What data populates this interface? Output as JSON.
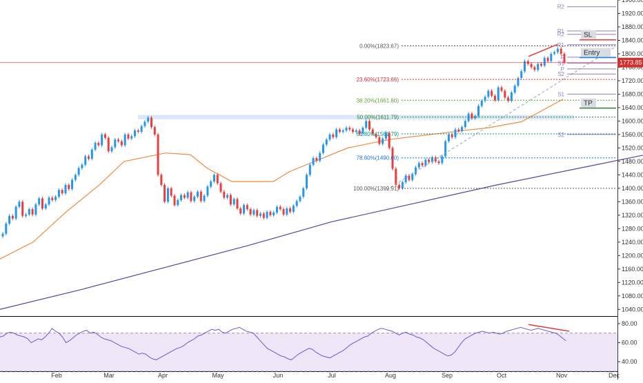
{
  "chart_data": {
    "type": "candlestick",
    "x_months": [
      "Feb",
      "Mar",
      "Apr",
      "May",
      "Jun",
      "Jul",
      "Aug",
      "Sep",
      "Oct",
      "Nov",
      "Dec"
    ],
    "y_axis": {
      "ylim": [
        1020,
        1960
      ],
      "ticks": [
        "1960.00",
        "1920.00",
        "1880.00",
        "1840.00",
        "1800.00",
        "1760.00",
        "1720.00",
        "1680.00",
        "1640.00",
        "1600.00",
        "1560.00",
        "1520.00",
        "1480.00",
        "1440.00",
        "1400.00",
        "1360.00",
        "1320.00",
        "1280.00",
        "1240.00",
        "1200.00",
        "1160.00",
        "1120.00",
        "1080.00",
        "1040.00"
      ]
    },
    "price_series": [
      [
        1257,
        1265
      ],
      [
        1265,
        1295
      ],
      [
        1295,
        1318
      ],
      [
        1318,
        1310
      ],
      [
        1310,
        1345
      ],
      [
        1345,
        1360
      ],
      [
        1360,
        1318
      ],
      [
        1318,
        1322
      ],
      [
        1322,
        1338
      ],
      [
        1338,
        1322
      ],
      [
        1322,
        1352
      ],
      [
        1352,
        1370
      ],
      [
        1370,
        1340
      ],
      [
        1340,
        1352
      ],
      [
        1352,
        1372
      ],
      [
        1372,
        1365
      ],
      [
        1365,
        1375
      ],
      [
        1375,
        1395
      ],
      [
        1395,
        1385
      ],
      [
        1385,
        1410
      ],
      [
        1410,
        1398
      ],
      [
        1398,
        1425
      ],
      [
        1425,
        1440
      ],
      [
        1440,
        1460
      ],
      [
        1460,
        1470
      ],
      [
        1470,
        1495
      ],
      [
        1495,
        1488
      ],
      [
        1488,
        1515
      ],
      [
        1515,
        1535
      ],
      [
        1535,
        1528
      ],
      [
        1528,
        1560
      ],
      [
        1560,
        1550
      ],
      [
        1550,
        1510
      ],
      [
        1510,
        1522
      ],
      [
        1522,
        1545
      ],
      [
        1545,
        1540
      ],
      [
        1540,
        1528
      ],
      [
        1528,
        1560
      ],
      [
        1560,
        1548
      ],
      [
        1548,
        1555
      ],
      [
        1555,
        1572
      ],
      [
        1572,
        1568
      ],
      [
        1568,
        1585
      ],
      [
        1585,
        1598
      ],
      [
        1598,
        1610
      ],
      [
        1610,
        1582
      ],
      [
        1582,
        1560
      ],
      [
        1560,
        1440
      ],
      [
        1440,
        1410
      ],
      [
        1410,
        1360
      ],
      [
        1360,
        1400
      ],
      [
        1400,
        1378
      ],
      [
        1378,
        1350
      ],
      [
        1350,
        1365
      ],
      [
        1365,
        1380
      ],
      [
        1380,
        1372
      ],
      [
        1372,
        1388
      ],
      [
        1388,
        1362
      ],
      [
        1362,
        1375
      ],
      [
        1375,
        1390
      ],
      [
        1390,
        1362
      ],
      [
        1362,
        1378
      ],
      [
        1378,
        1405
      ],
      [
        1405,
        1420
      ],
      [
        1420,
        1440
      ],
      [
        1440,
        1415
      ],
      [
        1415,
        1390
      ],
      [
        1390,
        1372
      ],
      [
        1372,
        1380
      ],
      [
        1380,
        1352
      ],
      [
        1352,
        1368
      ],
      [
        1368,
        1340
      ],
      [
        1340,
        1325
      ],
      [
        1325,
        1350
      ],
      [
        1350,
        1338
      ],
      [
        1338,
        1322
      ],
      [
        1322,
        1335
      ],
      [
        1335,
        1318
      ],
      [
        1318,
        1325
      ],
      [
        1325,
        1312
      ],
      [
        1312,
        1330
      ],
      [
        1330,
        1320
      ],
      [
        1320,
        1328
      ],
      [
        1328,
        1345
      ],
      [
        1345,
        1338
      ],
      [
        1338,
        1322
      ],
      [
        1322,
        1340
      ],
      [
        1340,
        1330
      ],
      [
        1330,
        1348
      ],
      [
        1348,
        1362
      ],
      [
        1362,
        1375
      ],
      [
        1375,
        1400
      ],
      [
        1400,
        1440
      ],
      [
        1440,
        1470
      ],
      [
        1470,
        1490
      ],
      [
        1490,
        1482
      ],
      [
        1482,
        1505
      ],
      [
        1505,
        1530
      ],
      [
        1530,
        1545
      ],
      [
        1545,
        1560
      ],
      [
        1560,
        1552
      ],
      [
        1552,
        1575
      ],
      [
        1575,
        1568
      ],
      [
        1568,
        1572
      ],
      [
        1572,
        1580
      ],
      [
        1580,
        1575
      ],
      [
        1575,
        1568
      ],
      [
        1568,
        1572
      ],
      [
        1572,
        1562
      ],
      [
        1562,
        1580
      ],
      [
        1580,
        1600
      ],
      [
        1600,
        1575
      ],
      [
        1575,
        1562
      ],
      [
        1562,
        1552
      ],
      [
        1552,
        1532
      ],
      [
        1532,
        1548
      ],
      [
        1548,
        1565
      ],
      [
        1565,
        1520
      ],
      [
        1520,
        1458
      ],
      [
        1458,
        1410
      ],
      [
        1410,
        1400
      ],
      [
        1400,
        1418
      ],
      [
        1418,
        1438
      ],
      [
        1438,
        1425
      ],
      [
        1425,
        1442
      ],
      [
        1442,
        1462
      ],
      [
        1462,
        1475
      ],
      [
        1475,
        1468
      ],
      [
        1468,
        1485
      ],
      [
        1485,
        1478
      ],
      [
        1478,
        1492
      ],
      [
        1492,
        1480
      ],
      [
        1480,
        1475
      ],
      [
        1475,
        1495
      ],
      [
        1495,
        1540
      ],
      [
        1540,
        1560
      ],
      [
        1560,
        1552
      ],
      [
        1552,
        1575
      ],
      [
        1575,
        1570
      ],
      [
        1570,
        1582
      ],
      [
        1582,
        1600
      ],
      [
        1600,
        1622
      ],
      [
        1622,
        1608
      ],
      [
        1608,
        1615
      ],
      [
        1615,
        1645
      ],
      [
        1645,
        1660
      ],
      [
        1660,
        1672
      ],
      [
        1672,
        1690
      ],
      [
        1690,
        1675
      ],
      [
        1675,
        1662
      ],
      [
        1662,
        1700
      ],
      [
        1700,
        1690
      ],
      [
        1690,
        1670
      ],
      [
        1670,
        1660
      ],
      [
        1660,
        1685
      ],
      [
        1685,
        1705
      ],
      [
        1705,
        1728
      ],
      [
        1728,
        1748
      ],
      [
        1748,
        1778
      ],
      [
        1778,
        1770
      ],
      [
        1770,
        1760
      ],
      [
        1760,
        1752
      ],
      [
        1752,
        1770
      ],
      [
        1770,
        1765
      ],
      [
        1765,
        1788
      ],
      [
        1788,
        1778
      ],
      [
        1778,
        1800
      ],
      [
        1800,
        1805
      ],
      [
        1805,
        1815
      ],
      [
        1815,
        1800
      ],
      [
        1800,
        1774
      ]
    ],
    "moving_average_orange": [
      [
        0,
        1190
      ],
      [
        40,
        1240
      ],
      [
        80,
        1330
      ],
      [
        120,
        1410
      ],
      [
        150,
        1480
      ],
      [
        200,
        1505
      ],
      [
        230,
        1500
      ],
      [
        250,
        1460
      ],
      [
        280,
        1420
      ],
      [
        330,
        1420
      ],
      [
        350,
        1450
      ],
      [
        380,
        1480
      ],
      [
        420,
        1520
      ],
      [
        470,
        1545
      ],
      [
        520,
        1560
      ],
      [
        560,
        1572
      ],
      [
        590,
        1580
      ],
      [
        630,
        1598
      ],
      [
        680,
        1665
      ]
    ],
    "moving_average_purple": [
      [
        0,
        1040
      ],
      [
        100,
        1100
      ],
      [
        200,
        1165
      ],
      [
        300,
        1230
      ],
      [
        400,
        1300
      ],
      [
        500,
        1355
      ],
      [
        600,
        1410
      ],
      [
        700,
        1460
      ],
      [
        790,
        1505
      ]
    ],
    "fibonacci": [
      {
        "label": "0.00%(1823.67)",
        "value": 1823.67,
        "color": "#555555"
      },
      {
        "label": "23.60%(1723.66)",
        "value": 1723.66,
        "color": "#d32f2f"
      },
      {
        "label": "38.20%(1661.80)",
        "value": 1661.8,
        "color": "#5e9e3a"
      },
      {
        "label": "50.00%(1611.79)",
        "value": 1611.79,
        "color": "#2e7d32"
      },
      {
        "label": "61.80%(1561.79)",
        "value": 1561.79,
        "color": "#009688"
      },
      {
        "label": "78.60%(1490.60)",
        "value": 1490.6,
        "color": "#1976d2"
      },
      {
        "label": "100.00%(1399.91)",
        "value": 1399.91,
        "color": "#555555"
      }
    ],
    "pivots": [
      {
        "label": "R2",
        "value": 1940
      },
      {
        "label": "R1",
        "value": 1868
      },
      {
        "label": "R2",
        "value": 1858
      },
      {
        "label": "R1",
        "value": 1827
      },
      {
        "label": "P",
        "value": 1790
      },
      {
        "label": "S1",
        "value": 1772
      },
      {
        "label": "P",
        "value": 1755
      },
      {
        "label": "S2",
        "value": 1740
      },
      {
        "label": "S1",
        "value": 1680
      },
      {
        "label": "S2",
        "value": 1560
      }
    ],
    "annotations": [
      {
        "label": "SL",
        "value": 1858
      },
      {
        "label": "Entry",
        "value": 1805
      },
      {
        "label": "TP",
        "value": 1655
      }
    ],
    "last_price": {
      "label": "1773.85",
      "value": 1773.85,
      "color": "#d32f2f"
    },
    "rsi": {
      "ylim": [
        30,
        85
      ],
      "ticks": [
        "80.00",
        "60.00",
        "40.00"
      ],
      "band": [
        30,
        70
      ],
      "values": [
        66,
        67,
        70,
        71,
        70,
        68,
        67,
        66,
        64,
        60,
        62,
        64,
        63,
        66,
        70,
        75,
        72,
        70,
        66,
        60,
        62,
        65,
        68,
        70,
        72,
        73,
        70,
        71,
        69,
        66,
        64,
        63,
        62,
        60,
        58,
        56,
        55,
        54,
        52,
        50,
        48,
        49,
        48,
        45,
        43,
        42,
        44,
        46,
        48,
        50,
        52,
        54,
        55,
        57,
        60,
        62,
        64,
        67,
        68,
        70,
        72,
        74,
        73,
        74,
        71,
        70,
        72,
        74,
        75,
        76,
        74,
        72,
        71,
        70,
        66,
        62,
        58,
        54,
        52,
        50,
        48,
        46,
        45,
        43,
        42,
        45,
        48,
        50,
        52,
        54,
        53,
        50,
        48,
        46,
        45,
        44,
        46,
        48,
        50,
        52,
        55,
        58,
        60,
        62,
        64,
        66,
        67,
        70,
        72,
        74,
        75,
        74,
        73,
        72,
        70,
        68,
        70,
        71,
        69,
        68,
        66,
        65,
        63,
        60,
        57,
        54,
        52,
        50,
        48,
        46,
        47,
        50,
        55,
        60,
        64,
        66,
        68,
        70,
        71,
        72,
        71,
        70,
        71,
        70,
        69,
        70,
        72,
        73,
        74,
        75,
        76,
        75,
        74,
        73,
        74,
        75,
        74,
        73,
        72,
        71,
        70,
        68,
        65,
        62
      ]
    }
  }
}
